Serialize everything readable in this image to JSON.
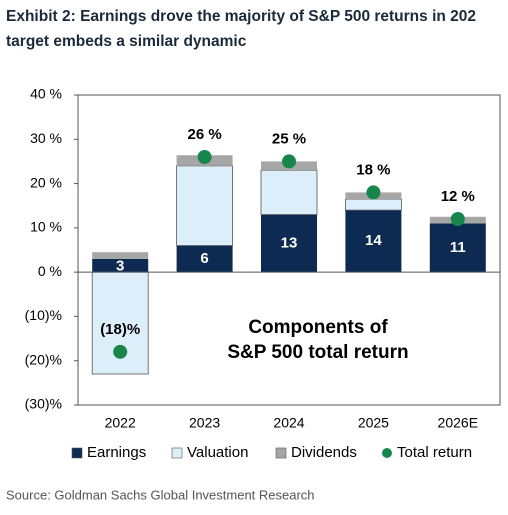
{
  "chart_data": {
    "type": "stacked_bar",
    "title": [
      "Exhibit 2: Earnings drove the majority of S&P 500 returns in 202",
      "target embeds a similar dynamic"
    ],
    "categories": [
      "2022",
      "2023",
      "2024",
      "2025",
      "2026E"
    ],
    "series": [
      {
        "name": "Earnings",
        "color": "#0d2b52",
        "values": [
          3,
          6,
          13,
          14,
          11
        ],
        "value_labels": [
          "3",
          "6",
          "13",
          "14",
          "11"
        ]
      },
      {
        "name": "Valuation",
        "color": "#dceefa",
        "values": [
          -23,
          18,
          10,
          2.5,
          0
        ]
      },
      {
        "name": "Dividends",
        "color": "#a6a6a6",
        "values": [
          1.5,
          2.4,
          2,
          1.5,
          1.5
        ]
      }
    ],
    "total": {
      "name": "Total return",
      "color": "#17864a",
      "values": [
        -18,
        26,
        25,
        18,
        12
      ],
      "value_labels": [
        "(18)%",
        "26 %",
        "25 %",
        "18 %",
        "12 %"
      ]
    },
    "annotation": [
      "Components of",
      "S&P 500 total return"
    ],
    "ylim": [
      -30,
      40
    ],
    "yticks": [
      {
        "value": -30,
        "label": "(30)%"
      },
      {
        "value": -20,
        "label": "(20)%"
      },
      {
        "value": -10,
        "label": "(10)%"
      },
      {
        "value": 0,
        "label": "0 %"
      },
      {
        "value": 10,
        "label": "10 %"
      },
      {
        "value": 20,
        "label": "20 %"
      },
      {
        "value": 30,
        "label": "30 %"
      },
      {
        "value": 40,
        "label": "40 %"
      }
    ],
    "source": "Source: Goldman Sachs Global Investment Research"
  }
}
